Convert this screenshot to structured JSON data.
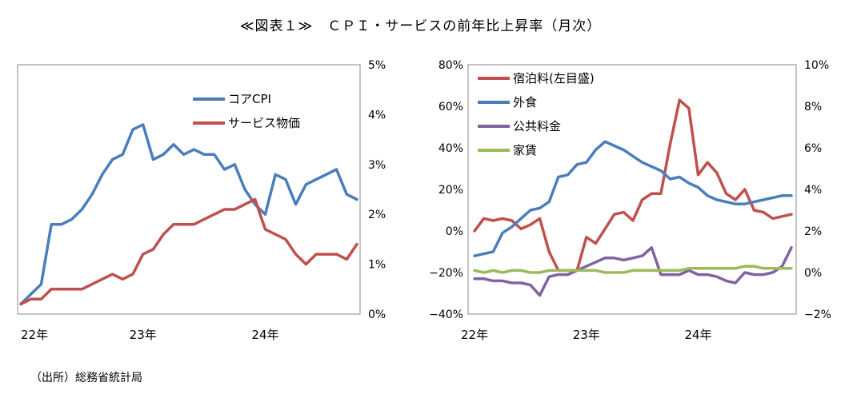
{
  "title": "≪図表１≫　ＣＰＩ・サービスの前年比上昇率（月次）",
  "source": "（出所）総務省統計局",
  "chart_data": [
    {
      "type": "line",
      "x_labels": [
        "22年",
        "23年",
        "24年"
      ],
      "x_label_months": [
        0,
        12,
        24
      ],
      "months": 34,
      "y_right_ticks": [
        "5%",
        "4%",
        "3%",
        "2%",
        "1%",
        "0%"
      ],
      "ylim_right": [
        0,
        5
      ],
      "grid": false,
      "legend": "top-right",
      "series": [
        {
          "name": "コアCPI",
          "color": "#4a7ebb",
          "axis": "right",
          "values": [
            0.2,
            0.4,
            0.6,
            1.8,
            1.8,
            1.9,
            2.1,
            2.4,
            2.8,
            3.1,
            3.2,
            3.7,
            3.8,
            3.1,
            3.2,
            3.4,
            3.2,
            3.3,
            3.2,
            3.2,
            2.9,
            3.0,
            2.5,
            2.2,
            2.0,
            2.8,
            2.7,
            2.2,
            2.6,
            2.7,
            2.8,
            2.9,
            2.4,
            2.3
          ]
        },
        {
          "name": "サービス物価",
          "color": "#c0504d",
          "axis": "right",
          "values": [
            0.2,
            0.3,
            0.3,
            0.5,
            0.5,
            0.5,
            0.5,
            0.6,
            0.7,
            0.8,
            0.7,
            0.8,
            1.2,
            1.3,
            1.6,
            1.8,
            1.8,
            1.8,
            1.9,
            2.0,
            2.1,
            2.1,
            2.2,
            2.3,
            1.7,
            1.6,
            1.5,
            1.2,
            1.0,
            1.2,
            1.2,
            1.2,
            1.1,
            1.4
          ]
        }
      ]
    },
    {
      "type": "line",
      "x_labels": [
        "22年",
        "23年",
        "24年"
      ],
      "x_label_months": [
        0,
        12,
        24
      ],
      "months": 35,
      "y_left_ticks": [
        "80%",
        "60%",
        "40%",
        "20%",
        "0%",
        "−20%",
        "−40%"
      ],
      "ylim_left": [
        -40,
        80
      ],
      "y_right_ticks": [
        "10%",
        "8%",
        "6%",
        "4%",
        "2%",
        "0%",
        "−2%"
      ],
      "ylim_right": [
        -2,
        10
      ],
      "grid": false,
      "legend": "top-left",
      "series": [
        {
          "name": "宿泊料(左目盛)",
          "color": "#c0504d",
          "axis": "left",
          "values": [
            0,
            6,
            5,
            6,
            5,
            1,
            3,
            6,
            -10,
            -19,
            -19,
            -19,
            -3,
            -6,
            1,
            8,
            9,
            5,
            15,
            18,
            18,
            42,
            63,
            59,
            27,
            33,
            28,
            18,
            15,
            20,
            10,
            9,
            6,
            7,
            8
          ]
        },
        {
          "name": "外食",
          "color": "#4a7ebb",
          "axis": "right",
          "values": [
            0.8,
            0.9,
            1.0,
            1.9,
            2.2,
            2.6,
            3.0,
            3.1,
            3.4,
            4.6,
            4.7,
            5.2,
            5.3,
            5.9,
            6.3,
            6.1,
            5.9,
            5.6,
            5.3,
            5.1,
            4.9,
            4.5,
            4.6,
            4.3,
            4.1,
            3.7,
            3.5,
            3.4,
            3.3,
            3.3,
            3.4,
            3.5,
            3.6,
            3.7,
            3.7
          ]
        },
        {
          "name": "公共料金",
          "color": "#8064a2",
          "axis": "right",
          "values": [
            -0.3,
            -0.3,
            -0.4,
            -0.4,
            -0.5,
            -0.5,
            -0.6,
            -1.1,
            -0.2,
            -0.1,
            -0.1,
            0.1,
            0.3,
            0.5,
            0.7,
            0.7,
            0.6,
            0.7,
            0.8,
            1.2,
            -0.1,
            -0.1,
            -0.1,
            0.1,
            -0.1,
            -0.1,
            -0.2,
            -0.4,
            -0.5,
            0.0,
            -0.1,
            -0.1,
            0.0,
            0.3,
            1.2
          ]
        },
        {
          "name": "家賃",
          "color": "#9bbb59",
          "axis": "right",
          "values": [
            0.1,
            0.0,
            0.1,
            0.0,
            0.1,
            0.1,
            0.0,
            0.0,
            0.1,
            0.1,
            0.1,
            0.1,
            0.1,
            0.1,
            0.0,
            0.0,
            0.0,
            0.1,
            0.1,
            0.1,
            0.1,
            0.1,
            0.1,
            0.2,
            0.2,
            0.2,
            0.2,
            0.2,
            0.2,
            0.3,
            0.3,
            0.2,
            0.2,
            0.2,
            0.2
          ]
        }
      ]
    }
  ]
}
